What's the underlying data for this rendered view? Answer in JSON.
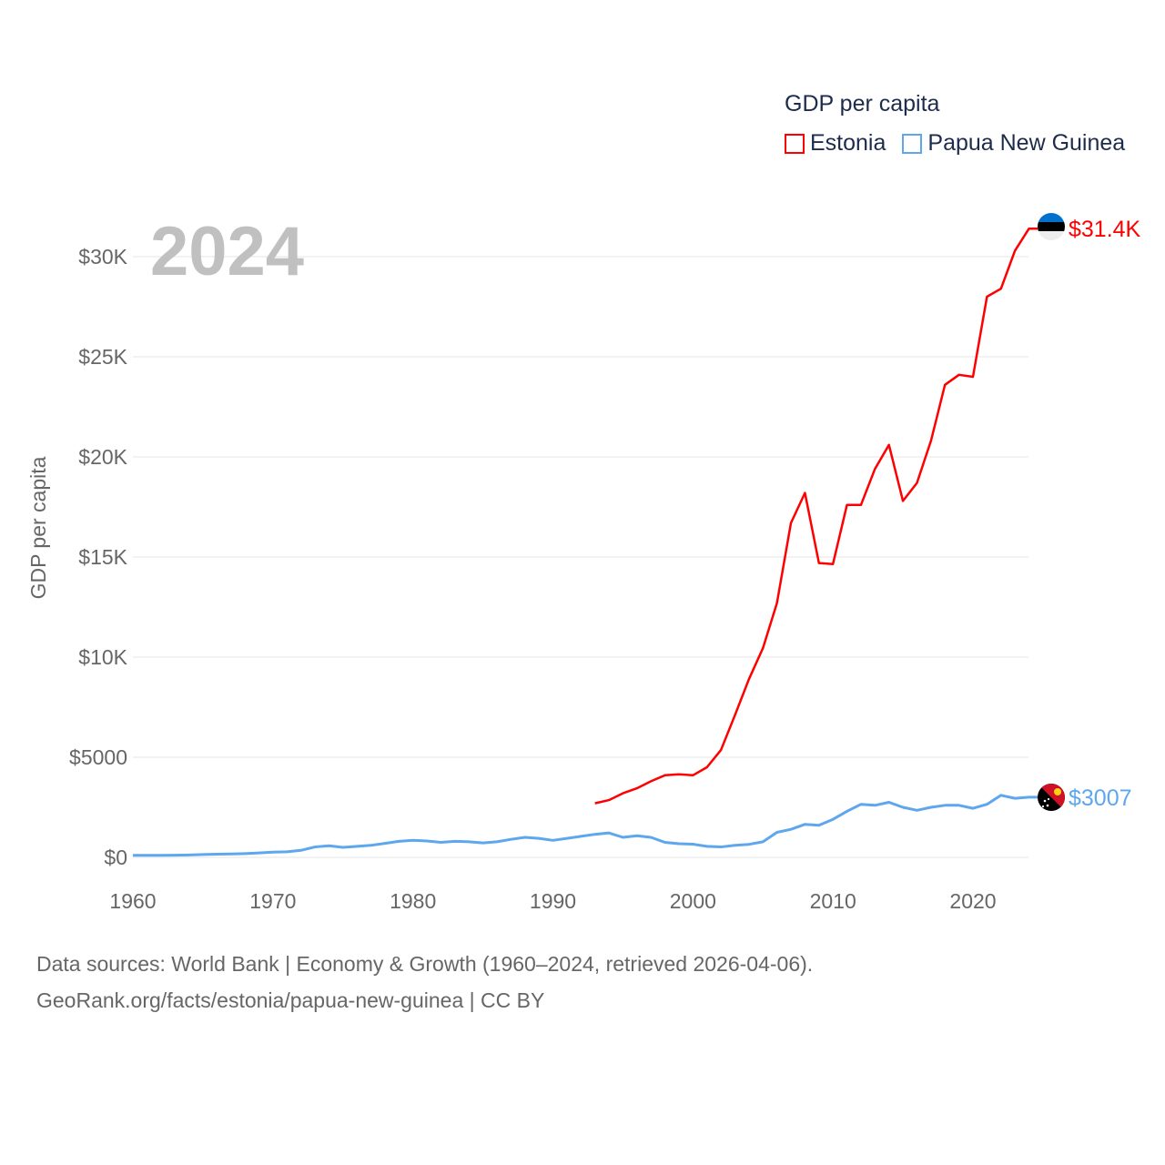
{
  "chart_data": {
    "type": "line",
    "title": "GDP per capita",
    "ylabel": "GDP per capita",
    "xlabel": "",
    "year_label": "2024",
    "xlim": [
      1960,
      2024
    ],
    "ylim": [
      0,
      32000
    ],
    "x_ticks": [
      1960,
      1970,
      1980,
      1990,
      2000,
      2010,
      2020
    ],
    "y_ticks": [
      0,
      5000,
      10000,
      15000,
      20000,
      25000,
      30000
    ],
    "y_tick_labels": [
      "$0",
      "$5000",
      "$10K",
      "$15K",
      "$20K",
      "$25K",
      "$30K"
    ],
    "grid": true,
    "legend_position": "top-right",
    "series": [
      {
        "name": "Estonia",
        "color": "#ff0000",
        "end_label": "$31.4K",
        "start_year": 1993,
        "values": [
          2700,
          2860,
          3200,
          3450,
          3800,
          4100,
          4150,
          4100,
          4500,
          5360,
          7100,
          8900,
          10450,
          12700,
          16700,
          18200,
          14700,
          14650,
          17600,
          17600,
          19400,
          20600,
          17800,
          18700,
          20800,
          23600,
          24100,
          24000,
          28000,
          28400,
          30300,
          31400
        ]
      },
      {
        "name": "Papua New Guinea",
        "color": "#5ea6ee",
        "end_label": "$3007",
        "start_year": 1960,
        "values": [
          100,
          100,
          100,
          110,
          120,
          140,
          160,
          170,
          190,
          220,
          260,
          280,
          350,
          520,
          580,
          500,
          550,
          600,
          700,
          800,
          850,
          820,
          750,
          800,
          780,
          720,
          780,
          900,
          1000,
          950,
          850,
          950,
          1050,
          1150,
          1220,
          1000,
          1080,
          1000,
          750,
          680,
          660,
          550,
          520,
          600,
          650,
          780,
          1250,
          1400,
          1650,
          1600,
          1900,
          2300,
          2650,
          2600,
          2750,
          2500,
          2350,
          2500,
          2600,
          2600,
          2450,
          2650,
          3100,
          2950,
          3007
        ]
      }
    ]
  },
  "footer": {
    "line1": "Data sources: World Bank | Economy & Growth (1960–2024, retrieved 2026-04-06).",
    "line2": "GeoRank.org/facts/estonia/papua-new-guinea | CC BY"
  }
}
